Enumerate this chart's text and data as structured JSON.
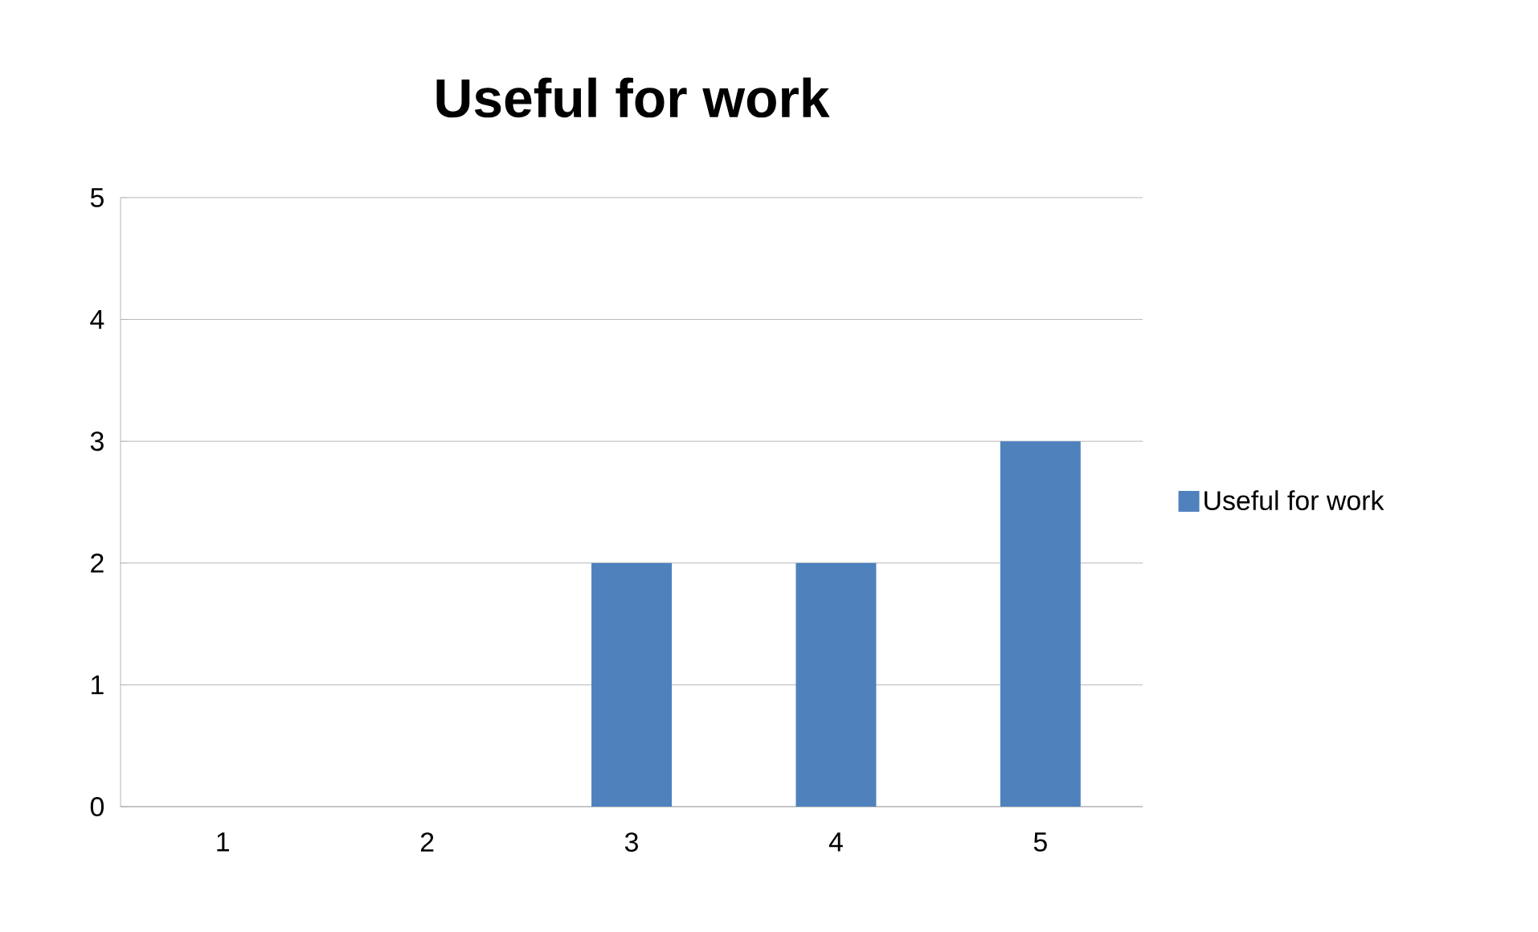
{
  "chart_data": {
    "type": "bar",
    "title": "Useful for work",
    "categories": [
      "1",
      "2",
      "3",
      "4",
      "5"
    ],
    "series": [
      {
        "name": "Useful for work",
        "color": "#4f81bd",
        "values": [
          0,
          0,
          2,
          2,
          3
        ]
      }
    ],
    "ylim": [
      0,
      5
    ],
    "yticks": [
      0,
      1,
      2,
      3,
      4,
      5
    ],
    "grid": "y",
    "legend": "right"
  }
}
